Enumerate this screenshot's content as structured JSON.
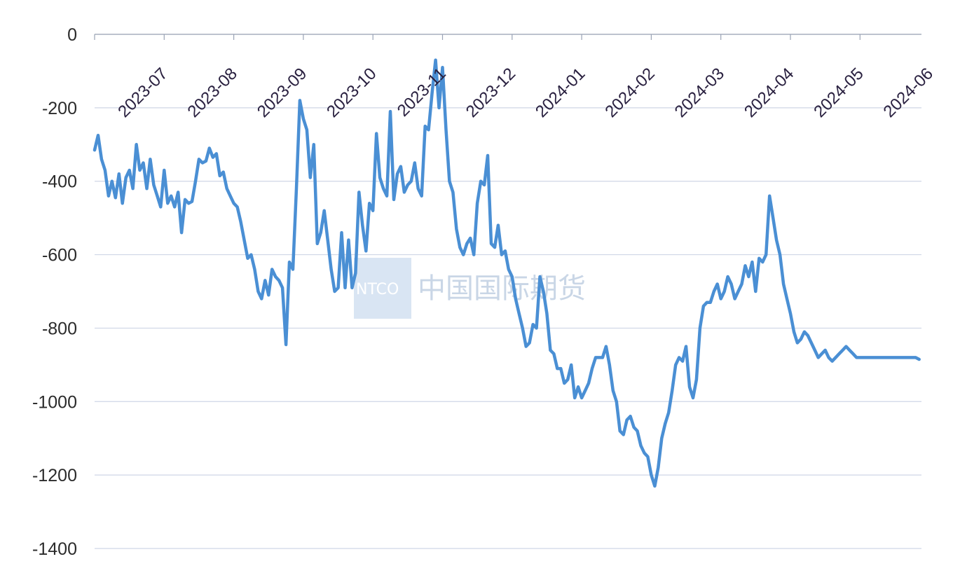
{
  "watermark": {
    "logo_text": "NTCO",
    "brand_text": "中国国际期货"
  },
  "colors": {
    "line": "#4a8fd4",
    "grid": "#cfd6e6",
    "axis": "#9aa3b5"
  },
  "chart_data": {
    "type": "line",
    "title": "",
    "xlabel": "",
    "ylabel": "",
    "ylim": [
      -1400,
      0
    ],
    "yticks": [
      0,
      -200,
      -400,
      -600,
      -800,
      -1000,
      -1200,
      -1400
    ],
    "ytick_labels": [
      "0",
      "-200",
      "-400",
      "-600",
      "-800",
      "-1000",
      "-1200",
      "-1400"
    ],
    "xticks": [
      "2023-07",
      "2023-08",
      "2023-09",
      "2023-10",
      "2023-11",
      "2023-12",
      "2024-01",
      "2024-02",
      "2024-03",
      "2024-04",
      "2024-05",
      "2024-06"
    ],
    "grid": true,
    "legend": "none",
    "series": [
      {
        "x": [
          0.0,
          0.05,
          0.1,
          0.15,
          0.2,
          0.25,
          0.3,
          0.35,
          0.4,
          0.45,
          0.5,
          0.55,
          0.6,
          0.65,
          0.7,
          0.75,
          0.8,
          0.85,
          0.9,
          0.95,
          1.0,
          1.05,
          1.1,
          1.15,
          1.2,
          1.25,
          1.3,
          1.35,
          1.4,
          1.45,
          1.5,
          1.55,
          1.6,
          1.65,
          1.7,
          1.75,
          1.8,
          1.85,
          1.9,
          1.95,
          2.0,
          2.05,
          2.1,
          2.15,
          2.2,
          2.25,
          2.3,
          2.35,
          2.4,
          2.45,
          2.5,
          2.55,
          2.6,
          2.65,
          2.7,
          2.75,
          2.8,
          2.85,
          2.9,
          2.95,
          3.0,
          3.05,
          3.1,
          3.15,
          3.2,
          3.25,
          3.3,
          3.35,
          3.4,
          3.45,
          3.5,
          3.55,
          3.6,
          3.65,
          3.7,
          3.75,
          3.8,
          3.85,
          3.9,
          3.95,
          4.0,
          4.05,
          4.1,
          4.15,
          4.2,
          4.25,
          4.3,
          4.35,
          4.4,
          4.45,
          4.5,
          4.55,
          4.6,
          4.65,
          4.7,
          4.75,
          4.8,
          4.85,
          4.9,
          4.95,
          5.0,
          5.05,
          5.1,
          5.15,
          5.2,
          5.25,
          5.3,
          5.35,
          5.4,
          5.45,
          5.5,
          5.55,
          5.6,
          5.65,
          5.7,
          5.75,
          5.8,
          5.85,
          5.9,
          5.95,
          6.0,
          6.05,
          6.1,
          6.15,
          6.2,
          6.25,
          6.3,
          6.35,
          6.4,
          6.45,
          6.5,
          6.55,
          6.6,
          6.65,
          6.7,
          6.75,
          6.8,
          6.85,
          6.9,
          6.95,
          7.0,
          7.05,
          7.1,
          7.15,
          7.2,
          7.25,
          7.3,
          7.35,
          7.4,
          7.45,
          7.5,
          7.55,
          7.6,
          7.65,
          7.7,
          7.75,
          7.8,
          7.85,
          7.9,
          7.95,
          8.0,
          8.05,
          8.1,
          8.15,
          8.2,
          8.25,
          8.3,
          8.35,
          8.4,
          8.45,
          8.5,
          8.55,
          8.6,
          8.65,
          8.7,
          8.75,
          8.8,
          8.85,
          8.9,
          8.95,
          9.0,
          9.05,
          9.1,
          9.15,
          9.2,
          9.25,
          9.3,
          9.35,
          9.4,
          9.45,
          9.5,
          9.55,
          9.6,
          9.65,
          9.7,
          9.75,
          9.8,
          9.85,
          9.9,
          9.95,
          10.0,
          10.05,
          10.1,
          10.15,
          10.2,
          10.25,
          10.3,
          10.35,
          10.4,
          10.45,
          10.5,
          10.55,
          10.6,
          10.65,
          10.7,
          10.75,
          10.8,
          10.85,
          10.9,
          10.95,
          11.0,
          11.05,
          11.1,
          11.15,
          11.2,
          11.25,
          11.3,
          11.35,
          11.4,
          11.45,
          11.5,
          11.55,
          11.6,
          11.65,
          11.7,
          11.75,
          11.8,
          11.85
        ],
        "values": [
          -315,
          -275,
          -340,
          -370,
          -440,
          -400,
          -445,
          -380,
          -460,
          -390,
          -370,
          -420,
          -300,
          -370,
          -350,
          -420,
          -340,
          -410,
          -440,
          -470,
          -370,
          -460,
          -440,
          -470,
          -430,
          -540,
          -450,
          -460,
          -455,
          -400,
          -340,
          -350,
          -345,
          -310,
          -335,
          -325,
          -385,
          -375,
          -420,
          -440,
          -460,
          -470,
          -510,
          -560,
          -610,
          -600,
          -640,
          -700,
          -720,
          -670,
          -710,
          -640,
          -660,
          -670,
          -690,
          -845,
          -620,
          -640,
          -420,
          -180,
          -230,
          -260,
          -390,
          -300,
          -570,
          -540,
          -480,
          -560,
          -640,
          -700,
          -690,
          -540,
          -690,
          -560,
          -690,
          -650,
          -430,
          -520,
          -590,
          -460,
          -480,
          -270,
          -390,
          -420,
          -440,
          -210,
          -450,
          -380,
          -360,
          -430,
          -410,
          -400,
          -350,
          -420,
          -440,
          -250,
          -260,
          -160,
          -70,
          -200,
          -90,
          -260,
          -400,
          -430,
          -530,
          -580,
          -600,
          -570,
          -555,
          -600,
          -460,
          -400,
          -410,
          -330,
          -570,
          -580,
          -520,
          -600,
          -590,
          -640,
          -660,
          -720,
          -760,
          -800,
          -850,
          -840,
          -790,
          -800,
          -660,
          -700,
          -760,
          -860,
          -870,
          -910,
          -910,
          -950,
          -940,
          -900,
          -990,
          -960,
          -990,
          -970,
          -950,
          -910,
          -880,
          -880,
          -880,
          -850,
          -900,
          -970,
          -1000,
          -1080,
          -1090,
          -1050,
          -1040,
          -1070,
          -1080,
          -1120,
          -1140,
          -1150,
          -1200,
          -1230,
          -1180,
          -1100,
          -1060,
          -1030,
          -970,
          -900,
          -880,
          -890,
          -850,
          -960,
          -990,
          -940,
          -800,
          -740,
          -730,
          -730,
          -700,
          -680,
          -720,
          -700,
          -660,
          -680,
          -720,
          -700,
          -680,
          -630,
          -660,
          -620,
          -700,
          -610,
          -620,
          -600,
          -440,
          -500,
          -560,
          -600,
          -680,
          -720,
          -760,
          -810,
          -840,
          -830,
          -810,
          -820,
          -840,
          -860,
          -880,
          -870,
          -860,
          -880,
          -890,
          -880,
          -870,
          -860,
          -850,
          -860,
          -870,
          -880,
          -880,
          -880,
          -880,
          -880,
          -880,
          -880,
          -880,
          -880,
          -880,
          -880,
          -880,
          -880,
          -880,
          -880,
          -880,
          -880,
          -880,
          -885
        ]
      }
    ]
  }
}
